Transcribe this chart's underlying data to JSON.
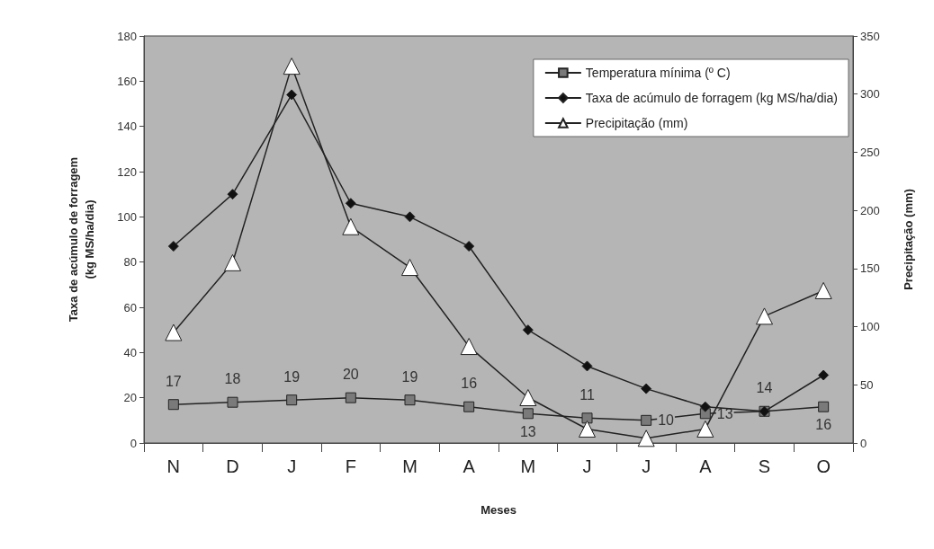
{
  "chart_data": {
    "type": "line",
    "xlabel": "Meses",
    "ylabel": "Taxa de acúmulo de forragem (kg MS/ha/dia)",
    "y2label": "Precipitação (mm)",
    "categories": [
      "N",
      "D",
      "J",
      "F",
      "M",
      "A",
      "M",
      "J",
      "J",
      "A",
      "S",
      "O"
    ],
    "ylim": [
      0,
      180
    ],
    "yticks": [
      0,
      20,
      40,
      60,
      80,
      100,
      120,
      140,
      160,
      180
    ],
    "y2lim": [
      0,
      350
    ],
    "y2ticks": [
      0,
      50,
      100,
      150,
      200,
      250,
      300,
      350
    ],
    "grid": false,
    "legend": "top right",
    "line_style": "solid",
    "series": [
      {
        "name": "Temperatura mínima (º C)",
        "color": "#7a7a7a",
        "marker": "square",
        "data_labels": true,
        "values": [
          17,
          18,
          19,
          20,
          19,
          16,
          13,
          11,
          10,
          13,
          14,
          16
        ]
      },
      {
        "name": "Taxa de acúmulo de forragem (kg MS/ha/dia)",
        "color": "#111111",
        "marker": "diamond",
        "values": [
          87,
          110,
          154,
          106,
          100,
          87,
          50,
          34,
          24,
          16,
          14,
          30
        ]
      },
      {
        "name": "Precipitação (mm)",
        "color": "#ffffff",
        "marker": "triangle",
        "axis": "y2",
        "values": [
          95,
          155,
          324,
          186,
          151,
          83,
          39,
          12,
          4,
          12,
          109,
          131
        ]
      }
    ]
  }
}
